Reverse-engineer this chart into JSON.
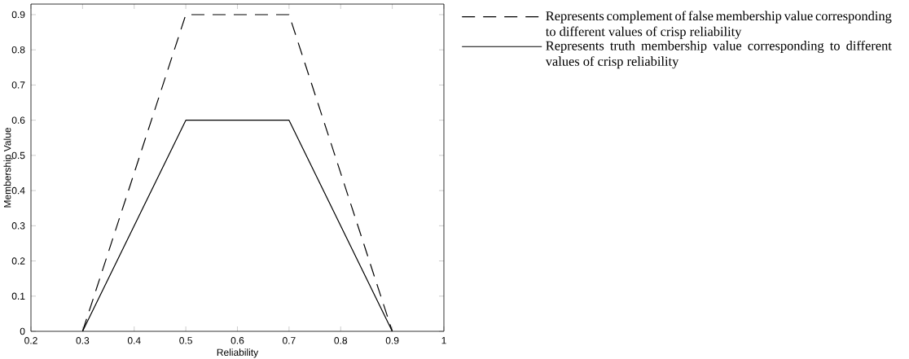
{
  "chart_data": {
    "type": "line",
    "xlabel": "Reliability",
    "ylabel": "Membership Value",
    "x": [
      0.3,
      0.5,
      0.7,
      0.9
    ],
    "series": [
      {
        "name": "Represents complement of false membership value corresponding to different values of crisp reliability",
        "color": "#000000",
        "line_style": "dashed",
        "values": [
          0,
          0.9,
          0.9,
          0
        ]
      },
      {
        "name": "Represents truth membership value corresponding to different values of crisp reliability",
        "color": "#000000",
        "line_style": "solid",
        "values": [
          0,
          0.6,
          0.6,
          0
        ]
      }
    ],
    "xlim": [
      0.2,
      1
    ],
    "ylim": [
      0,
      0.93
    ],
    "xticks": [
      0.2,
      0.3,
      0.4,
      0.5,
      0.6,
      0.7,
      0.8,
      0.9,
      1
    ],
    "yticks": [
      0,
      0.1,
      0.2,
      0.3,
      0.4,
      0.5,
      0.6,
      0.7,
      0.8,
      0.9
    ],
    "grid": false,
    "legend": "right",
    "marker": "none"
  }
}
